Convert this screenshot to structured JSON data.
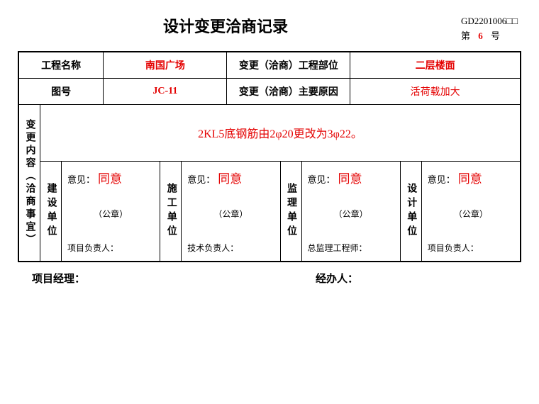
{
  "header": {
    "title": "设计变更洽商记录",
    "doc_code": "GD2201006□□",
    "seq_prefix": "第",
    "seq_no": "6",
    "seq_suffix": "号"
  },
  "info": {
    "project_label": "工程名称",
    "project_value": "南国广场",
    "part_label": "变更（洽商）工程部位",
    "part_value": "二层楼面",
    "drawing_label": "图号",
    "drawing_value": "JC-11",
    "reason_label": "变更（洽商）主要原因",
    "reason_value": "活荷载加大"
  },
  "content": {
    "vert_label": "变更内容︵洽商事宜︶",
    "body": "2KL5底钢筋由2φ20更改为3φ22。"
  },
  "opinions": [
    {
      "unit": "建设单位",
      "label": "意见：",
      "value": "同意",
      "seal": "（公章）",
      "signer": "项目负责人："
    },
    {
      "unit": "施工单位",
      "label": "意见：",
      "value": "同意",
      "seal": "（公章）",
      "signer": "技术负责人："
    },
    {
      "unit": "监理单位",
      "label": "意见：",
      "value": "同意",
      "seal": "（公章）",
      "signer": "总监理工程师："
    },
    {
      "unit": "设计单位",
      "label": "意见：",
      "value": "同意",
      "seal": "（公章）",
      "signer": "项目负责人："
    }
  ],
  "footer": {
    "pm": "项目经理：",
    "handler": "经办人："
  },
  "colors": {
    "text": "#000000",
    "accent": "#e40000",
    "border": "#000000",
    "background": "#ffffff"
  }
}
